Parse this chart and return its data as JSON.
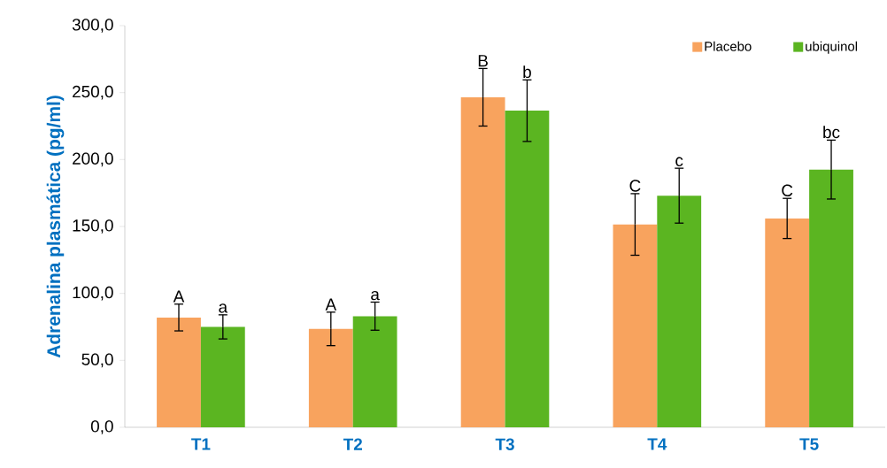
{
  "chart_data": {
    "type": "bar",
    "ylabel": "Adrenalina plasmática (pg/ml)",
    "categories": [
      "T1",
      "T2",
      "T3",
      "T4",
      "T5"
    ],
    "series": [
      {
        "name": "Placebo",
        "color": "#f8a35e",
        "values": [
          82,
          73.5,
          246.5,
          151.5,
          156
        ],
        "errors": [
          10,
          12.5,
          21.5,
          23,
          15
        ]
      },
      {
        "name": "ubiquinol",
        "color": "#5bb521",
        "values": [
          75,
          83,
          236.5,
          173,
          192.5
        ],
        "errors": [
          9,
          10.5,
          23,
          20.5,
          22
        ]
      }
    ],
    "ylim": [
      0,
      300
    ],
    "yticks": [
      {
        "value": 0,
        "label": "0,0"
      },
      {
        "value": 50,
        "label": "50,0"
      },
      {
        "value": 100,
        "label": "100,0"
      },
      {
        "value": 150,
        "label": "150,0"
      },
      {
        "value": 200,
        "label": "200,0"
      },
      {
        "value": 250,
        "label": "250,0"
      },
      {
        "value": 300,
        "label": "300,0"
      }
    ],
    "legend": "top right",
    "grid": false,
    "annotations": [
      "A",
      "a",
      "A",
      "a",
      "B",
      "b",
      "C",
      "c",
      "C",
      "bc"
    ]
  }
}
